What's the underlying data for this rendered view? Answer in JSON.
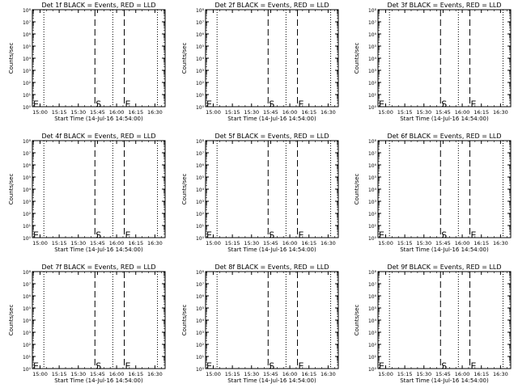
{
  "colors": {
    "background": "#ffffff",
    "ink": "#000000"
  },
  "chart_data": [
    {
      "type": "line",
      "title": "Det 1f BLACK = Events, RED = LLD",
      "xlabel": "Start Time (14-Jul-16 14:54:00)",
      "ylabel": "Counts/sec",
      "xlim": [
        "14:54",
        "16:38"
      ],
      "x_ticks": [
        "15:00",
        "15:15",
        "15:30",
        "15:45",
        "16:00",
        "16:15",
        "16:30"
      ],
      "y_scale": "log",
      "ylim": [
        1,
        100000000
      ],
      "y_tick_labels": [
        "10⁰",
        "10¹",
        "10²",
        "10³",
        "10⁴",
        "10⁵",
        "10⁶",
        "10⁷",
        "10⁸"
      ],
      "dotted_lines": [
        "15:03",
        "15:57",
        "16:32"
      ],
      "dashed_lines": [
        {
          "x": "15:43",
          "label": "S"
        },
        {
          "x": "16:06",
          "label": "E"
        }
      ],
      "edge_label": "E",
      "series": []
    },
    {
      "type": "line",
      "title": "Det 2f BLACK = Events, RED = LLD",
      "xlabel": "Start Time (14-Jul-16 14:54:00)",
      "ylabel": "Counts/sec",
      "xlim": [
        "14:54",
        "16:38"
      ],
      "x_ticks": [
        "15:00",
        "15:15",
        "15:30",
        "15:45",
        "16:00",
        "16:15",
        "16:30"
      ],
      "y_scale": "log",
      "ylim": [
        1,
        100000000
      ],
      "y_tick_labels": [
        "10⁰",
        "10¹",
        "10²",
        "10³",
        "10⁴",
        "10⁵",
        "10⁶",
        "10⁷",
        "10⁸"
      ],
      "dotted_lines": [
        "15:03",
        "15:57",
        "16:32"
      ],
      "dashed_lines": [
        {
          "x": "15:43",
          "label": "S"
        },
        {
          "x": "16:06",
          "label": "E"
        }
      ],
      "edge_label": "E",
      "series": []
    },
    {
      "type": "line",
      "title": "Det 3f BLACK = Events, RED = LLD",
      "xlabel": "Start Time (14-Jul-16 14:54:00)",
      "ylabel": "Counts/sec",
      "xlim": [
        "14:54",
        "16:38"
      ],
      "x_ticks": [
        "15:00",
        "15:15",
        "15:30",
        "15:45",
        "16:00",
        "16:15",
        "16:30"
      ],
      "y_scale": "log",
      "ylim": [
        1,
        100000000
      ],
      "y_tick_labels": [
        "10⁰",
        "10¹",
        "10²",
        "10³",
        "10⁴",
        "10⁵",
        "10⁶",
        "10⁷",
        "10⁸"
      ],
      "dotted_lines": [
        "15:03",
        "15:57",
        "16:32"
      ],
      "dashed_lines": [
        {
          "x": "15:43",
          "label": "S"
        },
        {
          "x": "16:06",
          "label": "E"
        }
      ],
      "edge_label": "E",
      "series": []
    },
    {
      "type": "line",
      "title": "Det 4f BLACK = Events, RED = LLD",
      "xlabel": "Start Time (14-Jul-16 14:54:00)",
      "ylabel": "Counts/sec",
      "xlim": [
        "14:54",
        "16:38"
      ],
      "x_ticks": [
        "15:00",
        "15:15",
        "15:30",
        "15:45",
        "16:00",
        "16:15",
        "16:30"
      ],
      "y_scale": "log",
      "ylim": [
        1,
        100000000
      ],
      "y_tick_labels": [
        "10⁰",
        "10¹",
        "10²",
        "10³",
        "10⁴",
        "10⁵",
        "10⁶",
        "10⁷",
        "10⁸"
      ],
      "dotted_lines": [
        "15:03",
        "15:57",
        "16:32"
      ],
      "dashed_lines": [
        {
          "x": "15:43",
          "label": "S"
        },
        {
          "x": "16:06",
          "label": "E"
        }
      ],
      "edge_label": "E",
      "series": []
    },
    {
      "type": "line",
      "title": "Det 5f BLACK = Events, RED = LLD",
      "xlabel": "Start Time (14-Jul-16 14:54:00)",
      "ylabel": "Counts/sec",
      "xlim": [
        "14:54",
        "16:38"
      ],
      "x_ticks": [
        "15:00",
        "15:15",
        "15:30",
        "15:45",
        "16:00",
        "16:15",
        "16:30"
      ],
      "y_scale": "log",
      "ylim": [
        1,
        100000000
      ],
      "y_tick_labels": [
        "10⁰",
        "10¹",
        "10²",
        "10³",
        "10⁴",
        "10⁵",
        "10⁶",
        "10⁷",
        "10⁸"
      ],
      "dotted_lines": [
        "15:03",
        "15:57",
        "16:32"
      ],
      "dashed_lines": [
        {
          "x": "15:43",
          "label": "S"
        },
        {
          "x": "16:06",
          "label": "E"
        }
      ],
      "edge_label": "E",
      "series": []
    },
    {
      "type": "line",
      "title": "Det 6f BLACK = Events, RED = LLD",
      "xlabel": "Start Time (14-Jul-16 14:54:00)",
      "ylabel": "Counts/sec",
      "xlim": [
        "14:54",
        "16:38"
      ],
      "x_ticks": [
        "15:00",
        "15:15",
        "15:30",
        "15:45",
        "16:00",
        "16:15",
        "16:30"
      ],
      "y_scale": "log",
      "ylim": [
        1,
        100000000
      ],
      "y_tick_labels": [
        "10⁰",
        "10¹",
        "10²",
        "10³",
        "10⁴",
        "10⁵",
        "10⁶",
        "10⁷",
        "10⁸"
      ],
      "dotted_lines": [
        "15:03",
        "15:57",
        "16:32"
      ],
      "dashed_lines": [
        {
          "x": "15:43",
          "label": "S"
        },
        {
          "x": "16:06",
          "label": "E"
        }
      ],
      "edge_label": "E",
      "series": []
    },
    {
      "type": "line",
      "title": "Det 7f BLACK = Events, RED = LLD",
      "xlabel": "Start Time (14-Jul-16 14:54:00)",
      "ylabel": "Counts/sec",
      "xlim": [
        "14:54",
        "16:38"
      ],
      "x_ticks": [
        "15:00",
        "15:15",
        "15:30",
        "15:45",
        "16:00",
        "16:15",
        "16:30"
      ],
      "y_scale": "log",
      "ylim": [
        1,
        100000000
      ],
      "y_tick_labels": [
        "10⁰",
        "10¹",
        "10²",
        "10³",
        "10⁴",
        "10⁵",
        "10⁶",
        "10⁷",
        "10⁸"
      ],
      "dotted_lines": [
        "15:03",
        "15:57",
        "16:32"
      ],
      "dashed_lines": [
        {
          "x": "15:43",
          "label": "S"
        },
        {
          "x": "16:06",
          "label": "E"
        }
      ],
      "edge_label": "E",
      "series": []
    },
    {
      "type": "line",
      "title": "Det 8f BLACK = Events, RED = LLD",
      "xlabel": "Start Time (14-Jul-16 14:54:00)",
      "ylabel": "Counts/sec",
      "xlim": [
        "14:54",
        "16:38"
      ],
      "x_ticks": [
        "15:00",
        "15:15",
        "15:30",
        "15:45",
        "16:00",
        "16:15",
        "16:30"
      ],
      "y_scale": "log",
      "ylim": [
        1,
        100000000
      ],
      "y_tick_labels": [
        "10⁰",
        "10¹",
        "10²",
        "10³",
        "10⁴",
        "10⁵",
        "10⁶",
        "10⁷",
        "10⁸"
      ],
      "dotted_lines": [
        "15:03",
        "15:57",
        "16:32"
      ],
      "dashed_lines": [
        {
          "x": "15:43",
          "label": "S"
        },
        {
          "x": "16:06",
          "label": "E"
        }
      ],
      "edge_label": "E",
      "series": []
    },
    {
      "type": "line",
      "title": "Det 9f BLACK = Events, RED = LLD",
      "xlabel": "Start Time (14-Jul-16 14:54:00)",
      "ylabel": "Counts/sec",
      "xlim": [
        "14:54",
        "16:38"
      ],
      "x_ticks": [
        "15:00",
        "15:15",
        "15:30",
        "15:45",
        "16:00",
        "16:15",
        "16:30"
      ],
      "y_scale": "log",
      "ylim": [
        1,
        100000000
      ],
      "y_tick_labels": [
        "10⁰",
        "10¹",
        "10²",
        "10³",
        "10⁴",
        "10⁵",
        "10⁶",
        "10⁷",
        "10⁸"
      ],
      "dotted_lines": [
        "15:03",
        "15:57",
        "16:32"
      ],
      "dashed_lines": [
        {
          "x": "15:43",
          "label": "S"
        },
        {
          "x": "16:06",
          "label": "E"
        }
      ],
      "edge_label": "E",
      "series": []
    }
  ]
}
